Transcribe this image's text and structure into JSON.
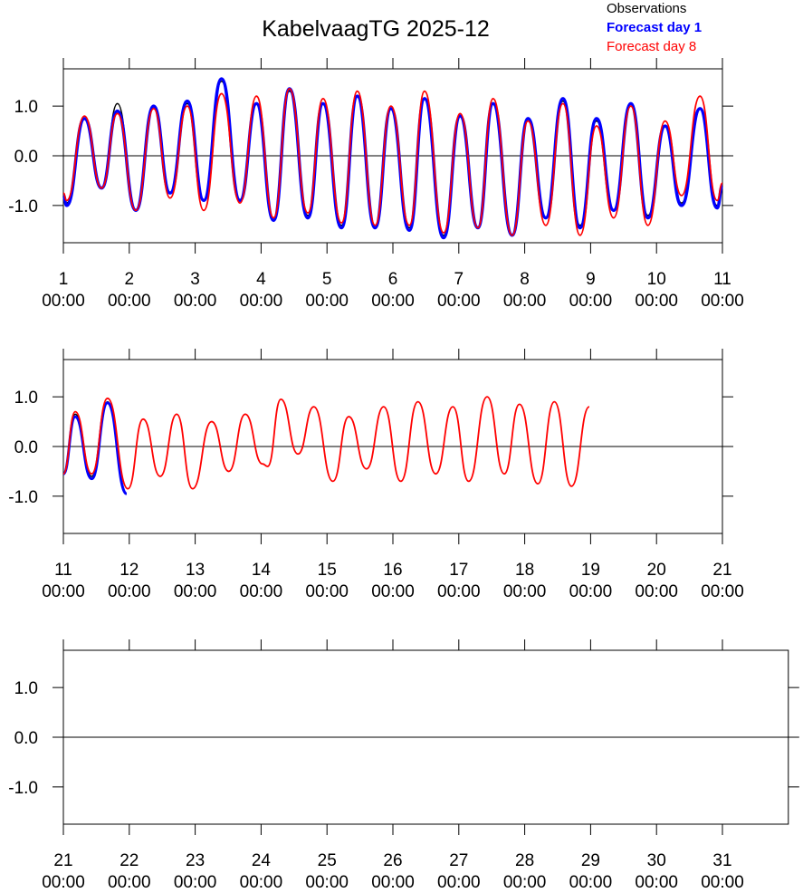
{
  "chart_data": [
    {
      "type": "line",
      "title": "KabelvaagTG 2025-12",
      "legend": "top-right",
      "xlim": [
        1,
        11
      ],
      "ylim": [
        -1.75,
        1.75
      ],
      "hline": 0,
      "xticks": [
        {
          "value": 1,
          "label": "1\n00:00"
        },
        {
          "value": 2,
          "label": "2\n00:00"
        },
        {
          "value": 3,
          "label": "3\n00:00"
        },
        {
          "value": 4,
          "label": "4\n00:00"
        },
        {
          "value": 5,
          "label": "5\n00:00"
        },
        {
          "value": 6,
          "label": "6\n00:00"
        },
        {
          "value": 7,
          "label": "7\n00:00"
        },
        {
          "value": 8,
          "label": "8\n00:00"
        },
        {
          "value": 9,
          "label": "9\n00:00"
        },
        {
          "value": 10,
          "label": "10\n00:00"
        },
        {
          "value": 11,
          "label": "11\n00:00"
        }
      ],
      "yticks": [
        {
          "value": -1,
          "label": "-1.0"
        },
        {
          "value": 0,
          "label": "0.0"
        },
        {
          "value": 1,
          "label": "1.0"
        }
      ],
      "series": [
        {
          "name": "Observations",
          "color": "#000000",
          "width": 1.5,
          "font_weight": "normal",
          "x": [
            1.0,
            1.05,
            1.32,
            1.58,
            1.82,
            2.1,
            2.37,
            2.62,
            2.88,
            3.13,
            3.4,
            3.68,
            3.93,
            4.19,
            4.43,
            4.71,
            4.94,
            5.22,
            5.46,
            5.73,
            5.97,
            6.25,
            6.48,
            6.77,
            7.02,
            7.29,
            7.52,
            7.81,
            8.05,
            8.32,
            8.58,
            8.84,
            9.09,
            9.35,
            9.61,
            9.87,
            10.13,
            10.38,
            10.66,
            10.92,
            11.0
          ],
          "values": [
            -0.8,
            -0.95,
            0.75,
            -0.65,
            1.05,
            -1.1,
            1.0,
            -0.75,
            1.05,
            -0.9,
            1.5,
            -0.9,
            1.05,
            -1.25,
            1.3,
            -1.2,
            1.05,
            -1.4,
            1.2,
            -1.45,
            0.95,
            -1.45,
            1.15,
            -1.6,
            0.8,
            -1.45,
            1.05,
            -1.6,
            0.75,
            -1.25,
            1.1,
            -1.4,
            0.7,
            -1.1,
            1.0,
            -1.2,
            0.6,
            -0.95,
            0.95,
            -1.0,
            -0.6
          ]
        },
        {
          "name": "Forecast day 1",
          "color": "#0000ff",
          "width": 3.5,
          "font_weight": "bold",
          "x": [
            1.0,
            1.05,
            1.32,
            1.58,
            1.82,
            2.1,
            2.37,
            2.62,
            2.88,
            3.13,
            3.4,
            3.68,
            3.93,
            4.19,
            4.43,
            4.71,
            4.94,
            5.22,
            5.46,
            5.73,
            5.97,
            6.25,
            6.48,
            6.77,
            7.02,
            7.29,
            7.52,
            7.81,
            8.05,
            8.32,
            8.58,
            8.84,
            9.09,
            9.35,
            9.61,
            9.87,
            10.13,
            10.38,
            10.66,
            10.92,
            11.0
          ],
          "values": [
            -0.8,
            -1.0,
            0.75,
            -0.65,
            0.9,
            -1.1,
            1.0,
            -0.75,
            1.1,
            -0.9,
            1.55,
            -0.9,
            1.05,
            -1.3,
            1.35,
            -1.25,
            1.05,
            -1.45,
            1.2,
            -1.45,
            0.95,
            -1.5,
            1.15,
            -1.65,
            0.8,
            -1.45,
            1.05,
            -1.6,
            0.75,
            -1.25,
            1.15,
            -1.45,
            0.75,
            -1.1,
            1.05,
            -1.25,
            0.6,
            -1.0,
            0.95,
            -1.05,
            -0.6
          ]
        },
        {
          "name": "Forecast day 8",
          "color": "#ff0000",
          "width": 1.8,
          "font_weight": "normal",
          "x": [
            1.0,
            1.05,
            1.32,
            1.58,
            1.82,
            2.1,
            2.37,
            2.62,
            2.88,
            3.13,
            3.4,
            3.68,
            3.93,
            4.19,
            4.43,
            4.71,
            4.94,
            5.22,
            5.46,
            5.73,
            5.97,
            6.25,
            6.48,
            6.77,
            7.02,
            7.29,
            7.52,
            7.81,
            8.05,
            8.32,
            8.58,
            8.84,
            9.09,
            9.35,
            9.61,
            9.87,
            10.13,
            10.38,
            10.66,
            10.92,
            11.0
          ],
          "values": [
            -0.75,
            -0.9,
            0.8,
            -0.65,
            0.85,
            -1.1,
            0.95,
            -0.85,
            1.0,
            -1.1,
            1.25,
            -0.95,
            1.2,
            -1.25,
            1.35,
            -1.15,
            1.15,
            -1.35,
            1.3,
            -1.4,
            1.0,
            -1.4,
            1.3,
            -1.55,
            0.85,
            -1.45,
            1.15,
            -1.6,
            0.7,
            -1.4,
            1.05,
            -1.6,
            0.6,
            -1.25,
            1.0,
            -1.4,
            0.7,
            -0.8,
            1.2,
            -0.9,
            -0.55
          ]
        }
      ]
    },
    {
      "type": "line",
      "xlim": [
        11,
        21
      ],
      "ylim": [
        -1.75,
        1.75
      ],
      "hline": 0,
      "xticks": [
        {
          "value": 11,
          "label": "11\n00:00"
        },
        {
          "value": 12,
          "label": "12\n00:00"
        },
        {
          "value": 13,
          "label": "13\n00:00"
        },
        {
          "value": 14,
          "label": "14\n00:00"
        },
        {
          "value": 15,
          "label": "15\n00:00"
        },
        {
          "value": 16,
          "label": "16\n00:00"
        },
        {
          "value": 17,
          "label": "17\n00:00"
        },
        {
          "value": 18,
          "label": "18\n00:00"
        },
        {
          "value": 19,
          "label": "19\n00:00"
        },
        {
          "value": 20,
          "label": "20\n00:00"
        },
        {
          "value": 21,
          "label": "21\n00:00"
        }
      ],
      "yticks": [
        {
          "value": -1,
          "label": "-1.0"
        },
        {
          "value": 0,
          "label": "0.0"
        },
        {
          "value": 1,
          "label": "1.0"
        }
      ],
      "series": [
        {
          "color": "#000000",
          "width": 1.5,
          "x": [
            11.0,
            11.18,
            11.43,
            11.67,
            11.96
          ],
          "values": [
            -0.55,
            0.65,
            -0.6,
            0.9,
            -0.95
          ]
        },
        {
          "color": "#0000ff",
          "width": 3.0,
          "x": [
            11.0,
            11.18,
            11.43,
            11.67,
            11.96
          ],
          "values": [
            -0.55,
            0.6,
            -0.65,
            0.88,
            -0.95
          ]
        },
        {
          "color": "#ff0000",
          "width": 1.8,
          "x": [
            11.0,
            11.18,
            11.43,
            11.67,
            11.98,
            12.21,
            12.47,
            12.72,
            12.96,
            13.25,
            13.51,
            13.76,
            14.02,
            14.1,
            14.3,
            14.56,
            14.8,
            15.09,
            15.33,
            15.6,
            15.86,
            16.12,
            16.38,
            16.65,
            16.91,
            17.15,
            17.43,
            17.69,
            17.92,
            18.2,
            18.45,
            18.71,
            18.98
          ],
          "values": [
            -0.55,
            0.7,
            -0.55,
            0.97,
            -0.85,
            0.55,
            -0.6,
            0.65,
            -0.85,
            0.5,
            -0.5,
            0.65,
            -0.35,
            -0.4,
            0.95,
            -0.15,
            0.8,
            -0.7,
            0.6,
            -0.45,
            0.8,
            -0.7,
            0.9,
            -0.55,
            0.8,
            -0.7,
            1.0,
            -0.55,
            0.85,
            -0.75,
            0.9,
            -0.8,
            0.8
          ]
        }
      ]
    },
    {
      "type": "line",
      "xlim": [
        21,
        32
      ],
      "ylim": [
        -1.75,
        1.75
      ],
      "hline": 0,
      "xticks": [
        {
          "value": 21,
          "label": "21\n00:00"
        },
        {
          "value": 22,
          "label": "22\n00:00"
        },
        {
          "value": 23,
          "label": "23\n00:00"
        },
        {
          "value": 24,
          "label": "24\n00:00"
        },
        {
          "value": 25,
          "label": "25\n00:00"
        },
        {
          "value": 26,
          "label": "26\n00:00"
        },
        {
          "value": 27,
          "label": "27\n00:00"
        },
        {
          "value": 28,
          "label": "28\n00:00"
        },
        {
          "value": 29,
          "label": "29\n00:00"
        },
        {
          "value": 30,
          "label": "30\n00:00"
        },
        {
          "value": 31,
          "label": "31\n00:00"
        }
      ],
      "yticks": [
        {
          "value": -1,
          "label": "-1.0"
        },
        {
          "value": 0,
          "label": "0.0"
        },
        {
          "value": 1,
          "label": "1.0"
        }
      ],
      "series": []
    }
  ]
}
